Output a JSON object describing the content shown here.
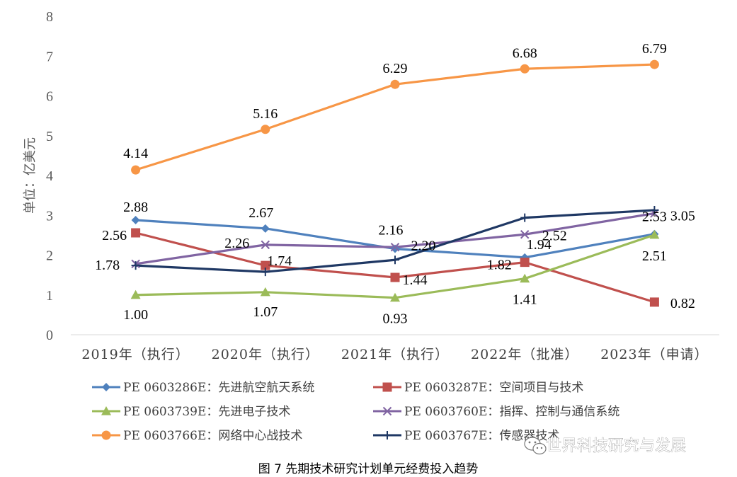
{
  "chart_data": {
    "type": "line",
    "ylabel": "单位：亿美元",
    "ylim": [
      0,
      8
    ],
    "yticks": [
      "0",
      "1",
      "2",
      "3",
      "4",
      "5",
      "6",
      "7",
      "8"
    ],
    "categories": [
      "2019年（执行）",
      "2020年（执行）",
      "2021年（执行）",
      "2022年（批准）",
      "2023年（申请）"
    ],
    "grid": false,
    "legend_position": "bottom",
    "series": [
      {
        "name": "PE 0603286E：先进航空航天系统",
        "values": [
          2.88,
          2.67,
          2.16,
          1.94,
          2.53
        ],
        "labels": [
          "2.88",
          "2.67",
          "2.16",
          "1.94",
          "2.53"
        ],
        "color": "#4f81bd",
        "marker": "diamond"
      },
      {
        "name": "PE 0603287E：空间项目与技术",
        "values": [
          2.56,
          1.74,
          1.44,
          1.82,
          0.82
        ],
        "labels": [
          "2.56",
          "1.74",
          "1.44",
          "1.82",
          "0.82"
        ],
        "color": "#c0504d",
        "marker": "square"
      },
      {
        "name": "PE 0603739E：先进电子技术",
        "values": [
          1.0,
          1.07,
          0.93,
          1.41,
          2.51
        ],
        "labels": [
          "1.00",
          "1.07",
          "0.93",
          "1.41",
          "2.51"
        ],
        "color": "#9bbb59",
        "marker": "triangle"
      },
      {
        "name": "PE 0603760E：指挥、控制与通信系统",
        "values": [
          1.78,
          2.26,
          2.2,
          2.52,
          3.05
        ],
        "labels": [
          "1.78",
          "2.26",
          "2.20",
          "2.52",
          "3.05"
        ],
        "color": "#8064a2",
        "marker": "x"
      },
      {
        "name": "PE 0603766E：网络中心战技术",
        "values": [
          4.14,
          5.16,
          6.29,
          6.68,
          6.79
        ],
        "labels": [
          "4.14",
          "5.16",
          "6.29",
          "6.68",
          "6.79"
        ],
        "color": "#f79646",
        "marker": "circle"
      },
      {
        "name": "PE 0603767E：传感器技术",
        "values": [
          1.74,
          1.58,
          1.88,
          2.94,
          3.13
        ],
        "labels": [],
        "color": "#1f3864",
        "marker": "plus"
      }
    ]
  },
  "caption": "图 7  先期技术研究计划单元经费投入趋势",
  "watermark": {
    "text": "世界科技研究与发展",
    "icon": "wechat-icon"
  }
}
